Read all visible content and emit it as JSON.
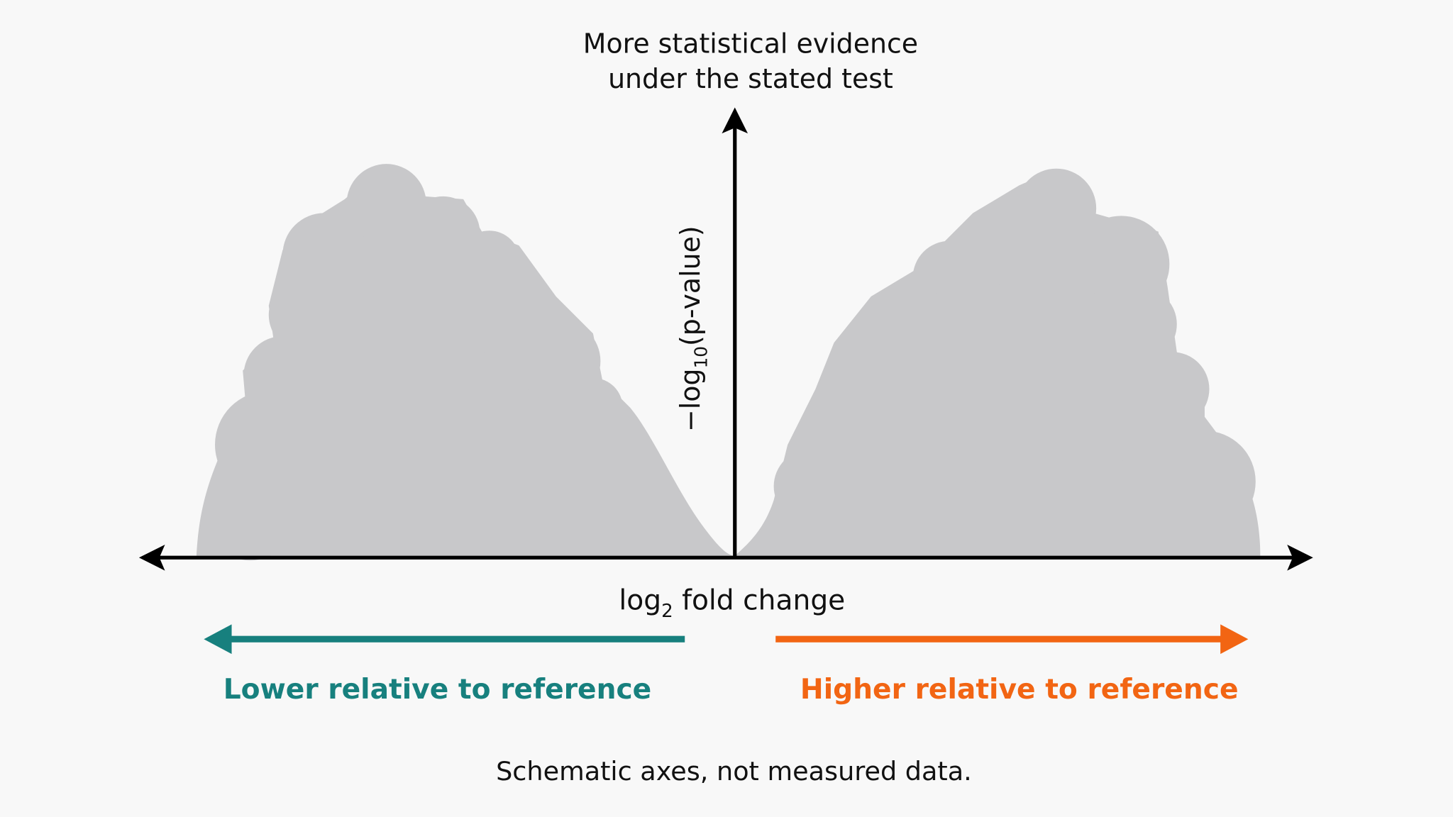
{
  "header": {
    "title_lines": [
      "More statistical evidence",
      "under the stated test"
    ]
  },
  "y_axis": {
    "label_parts": [
      "−log",
      "10",
      "(p-value)"
    ]
  },
  "x_axis": {
    "label_parts": [
      "log",
      "2",
      " fold change"
    ]
  },
  "directions": {
    "lower": "Lower relative to reference",
    "higher": "Higher relative to reference"
  },
  "footnote": "Schematic axes, not measured data."
}
